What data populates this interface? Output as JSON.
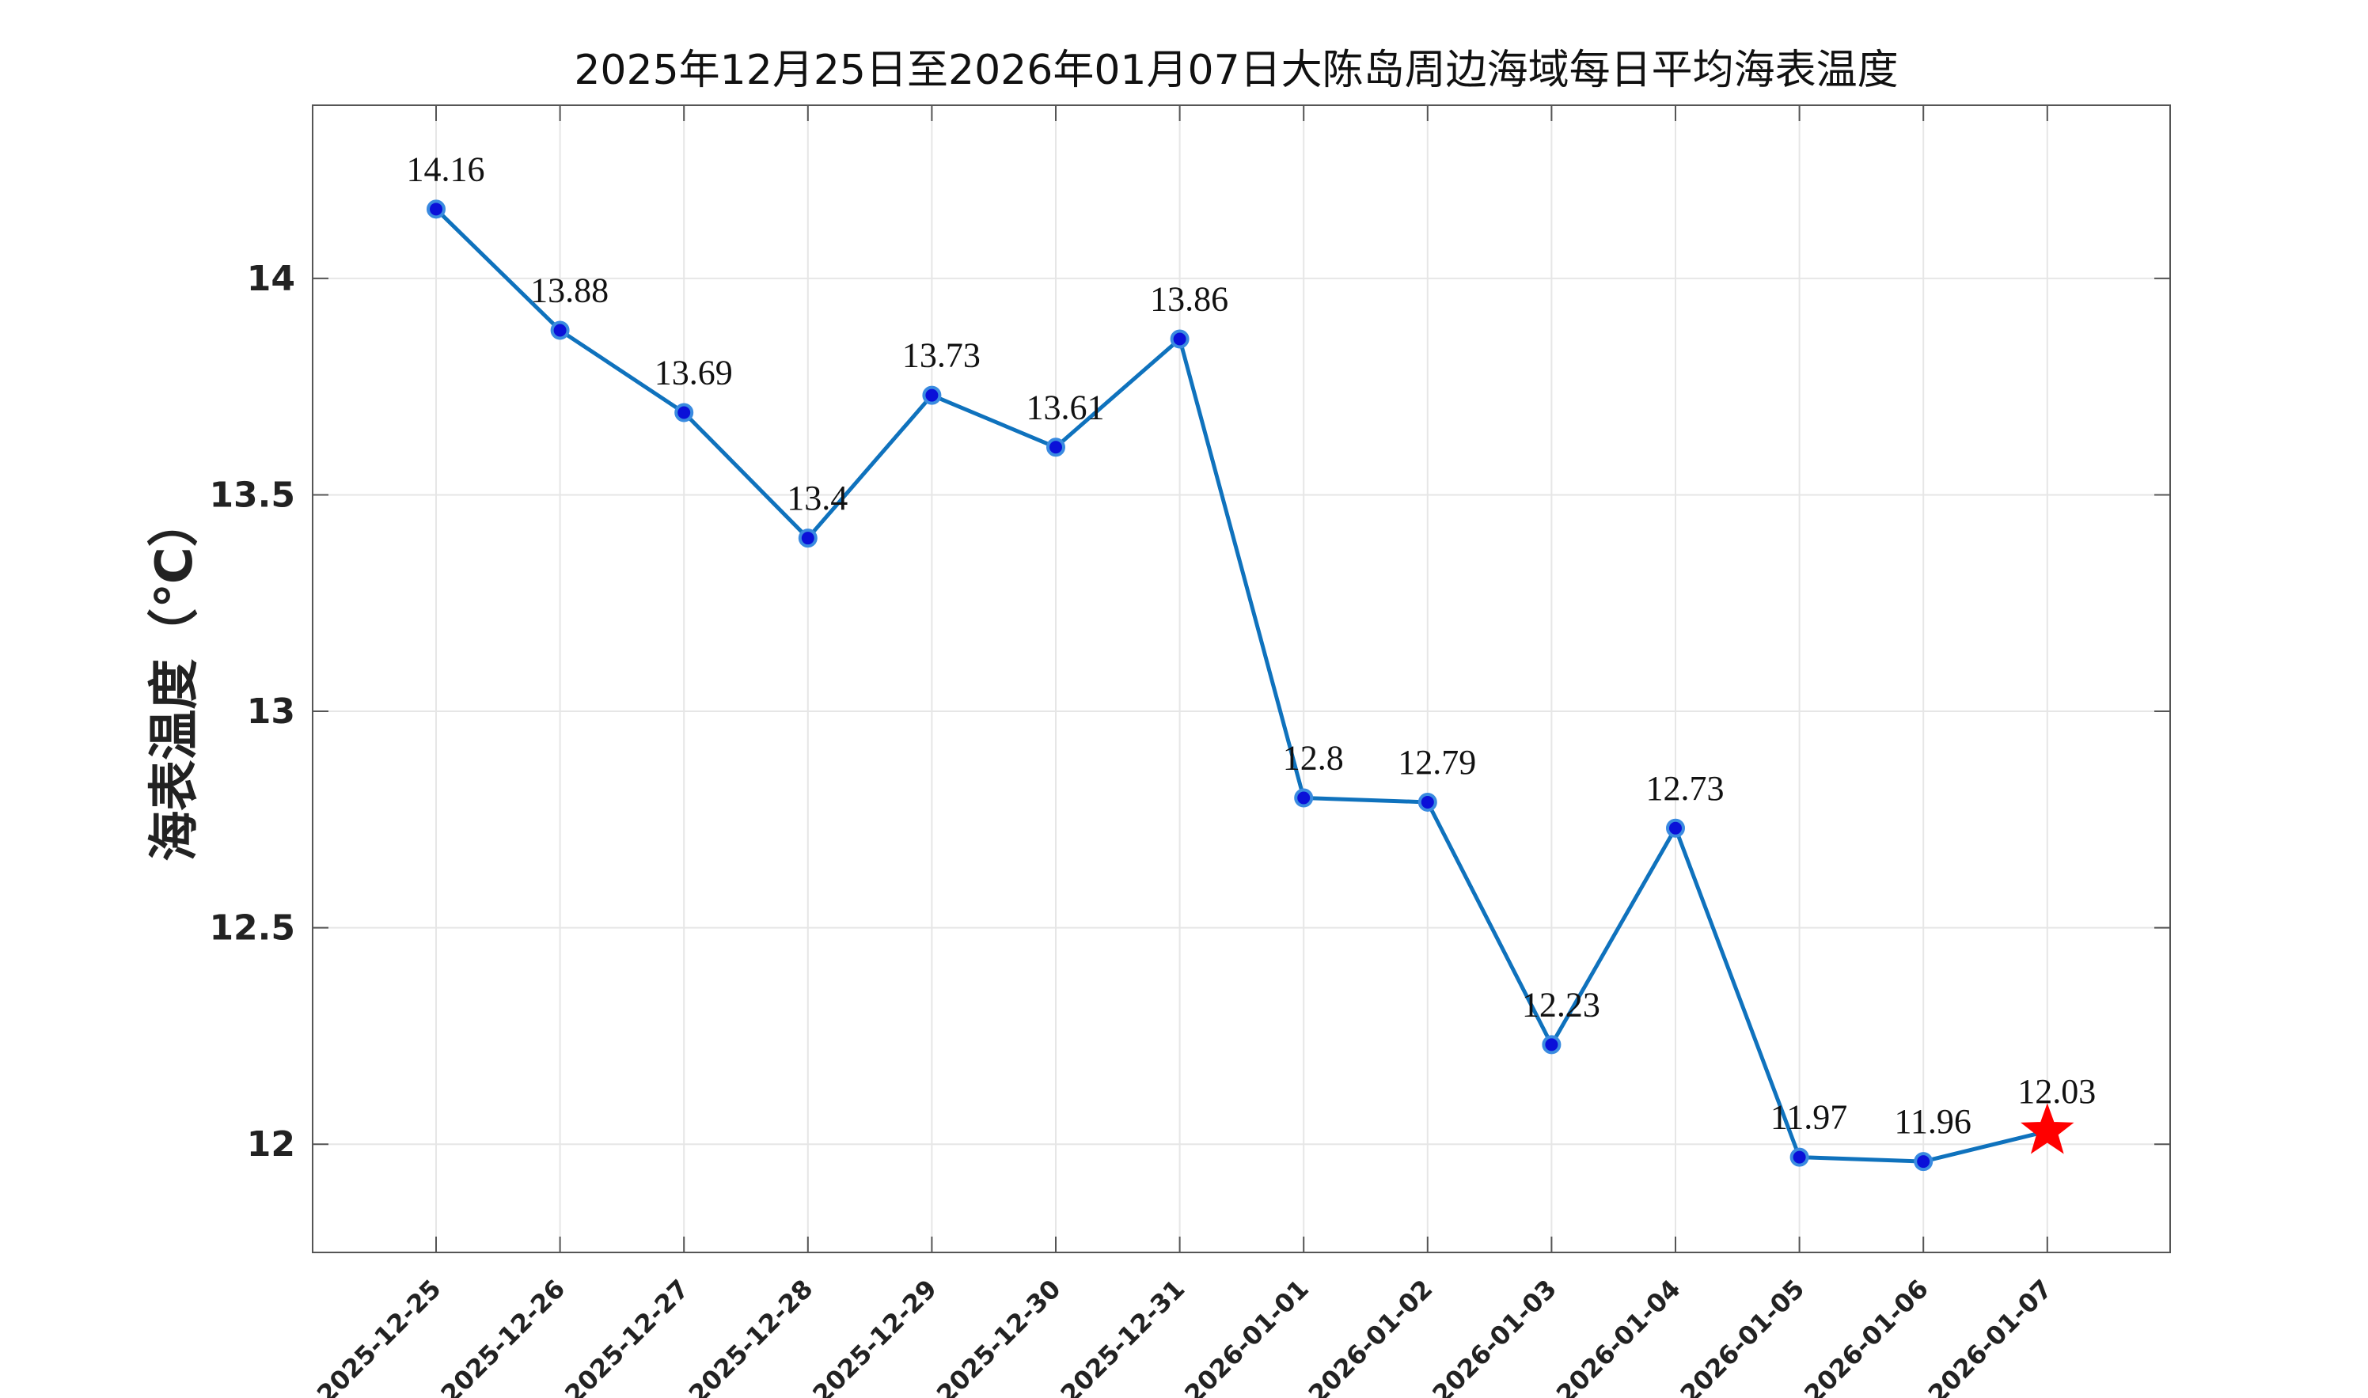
{
  "chart_data": {
    "type": "line",
    "title": "2025年12月25日至2026年01月07日大陈岛周边海域每日平均海表温度",
    "xlabel": "",
    "ylabel": "海表温度（℃）",
    "ylim": [
      11.75,
      14.4
    ],
    "yticks": [
      12,
      12.5,
      13,
      13.5,
      14
    ],
    "ytick_labels": [
      "12",
      "12.5",
      "13",
      "13.5",
      "14"
    ],
    "grid": true,
    "categories": [
      "2025-12-25",
      "2025-12-26",
      "2025-12-27",
      "2025-12-28",
      "2025-12-29",
      "2025-12-30",
      "2025-12-31",
      "2026-01-01",
      "2026-01-02",
      "2026-01-03",
      "2026-01-04",
      "2026-01-05",
      "2026-01-06",
      "2026-01-07"
    ],
    "values": [
      14.16,
      13.88,
      13.69,
      13.4,
      13.73,
      13.61,
      13.86,
      12.8,
      12.79,
      12.23,
      12.73,
      11.97,
      11.96,
      12.03
    ],
    "data_labels": [
      "14.16",
      "13.88",
      "13.69",
      "13.4",
      "13.73",
      "13.61",
      "13.86",
      "12.8",
      "12.79",
      "12.23",
      "12.73",
      "11.97",
      "11.96",
      "12.03"
    ],
    "highlight": {
      "index": 13,
      "marker": "star"
    },
    "colors": {
      "line": "#0f72bd",
      "marker_fill": "#0a10d8",
      "marker_edge": "#3a8be0",
      "star": "#ff0000",
      "grid": "#e6e6e6",
      "axes": "#555555"
    }
  }
}
